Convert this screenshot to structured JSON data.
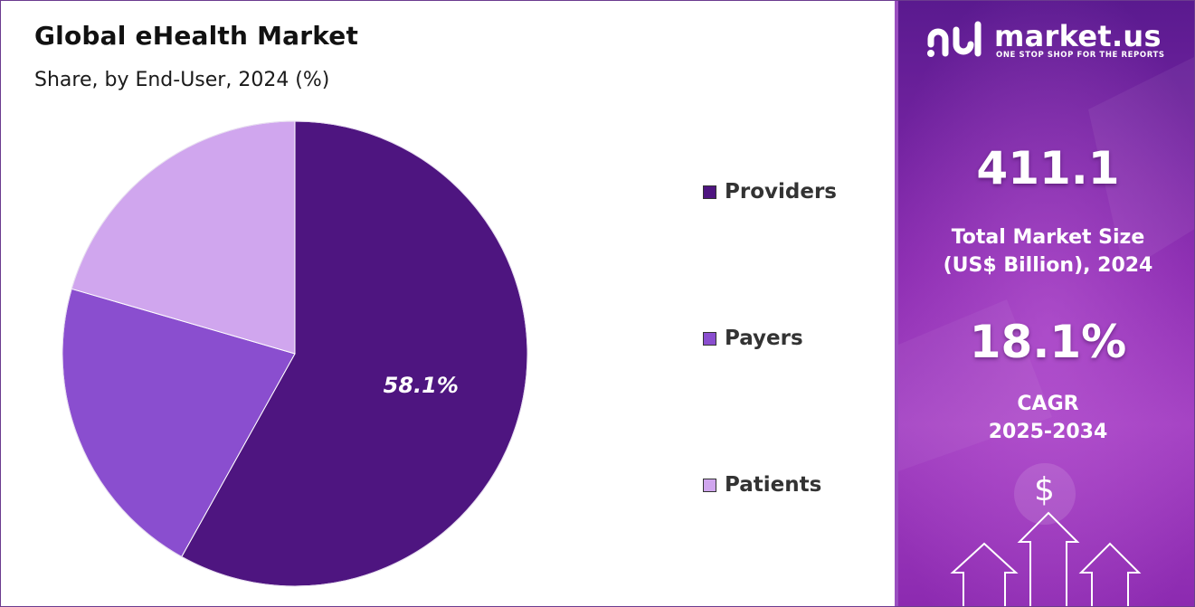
{
  "chart": {
    "title": "Global eHealth Market",
    "subtitle": "Share, by End-User, 2024 (%)"
  },
  "chart_data": {
    "type": "pie",
    "categories": [
      "Providers",
      "Payers",
      "Patients"
    ],
    "values": [
      58.1,
      21.4,
      20.5
    ],
    "colors": [
      "#4e1580",
      "#8a4ecf",
      "#d0a6ee"
    ],
    "data_labels": [
      "58.1%",
      "",
      ""
    ],
    "legend_position": "right",
    "start": "top, clockwise"
  },
  "legend": {
    "items": [
      {
        "label": "Providers",
        "color": "#4e1580"
      },
      {
        "label": "Payers",
        "color": "#8a4ecf"
      },
      {
        "label": "Patients",
        "color": "#d0a6ee"
      }
    ]
  },
  "panel": {
    "brand_name": "market.us",
    "brand_tagline": "ONE STOP SHOP FOR THE REPORTS",
    "market_size_value": "411.1",
    "market_size_caption_line1": "Total Market Size",
    "market_size_caption_line2": "(US$ Billion), 2024",
    "cagr_value": "18.1%",
    "cagr_caption_line1": "CAGR",
    "cagr_caption_line2": "2025-2034",
    "icon": "dollar-icon"
  }
}
